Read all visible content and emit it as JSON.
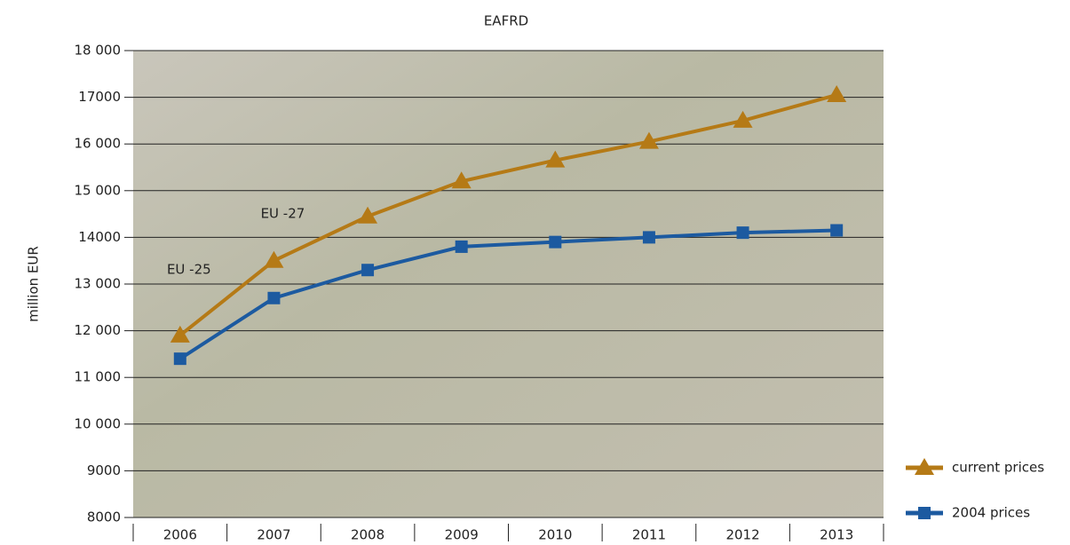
{
  "chart_data": {
    "type": "line",
    "title": "EAFRD",
    "y_label": "million EUR",
    "categories": [
      "2006",
      "2007",
      "2008",
      "2009",
      "2010",
      "2011",
      "2012",
      "2013"
    ],
    "series": [
      {
        "name": "current prices",
        "color": "#b57a16",
        "marker": "triangle",
        "values": [
          11900,
          13500,
          14450,
          15200,
          15650,
          16050,
          16500,
          17050
        ]
      },
      {
        "name": "2004 prices",
        "color": "#1c5aa0",
        "marker": "square",
        "values": [
          11400,
          12700,
          13300,
          13800,
          13900,
          14000,
          14100,
          14150
        ]
      }
    ],
    "ylim": [
      8000,
      18000
    ],
    "yticks": [
      {
        "value": 18000,
        "label": "18 000"
      },
      17000,
      {
        "value": 16000,
        "label": "16 000"
      },
      {
        "value": 15000,
        "label": "15 000"
      },
      14000,
      {
        "value": 13000,
        "label": "13 000"
      },
      {
        "value": 12000,
        "label": "12 000"
      },
      {
        "value": 11000,
        "label": "11 000"
      },
      {
        "value": 10000,
        "label": "10 000"
      },
      9000,
      8000
    ],
    "grid": true,
    "annotations": [
      {
        "text": "EU -25",
        "category": "2006",
        "y": 13300
      },
      {
        "text": "EU -27",
        "category": "2007",
        "y": 14500
      }
    ],
    "legend": "lower right"
  }
}
